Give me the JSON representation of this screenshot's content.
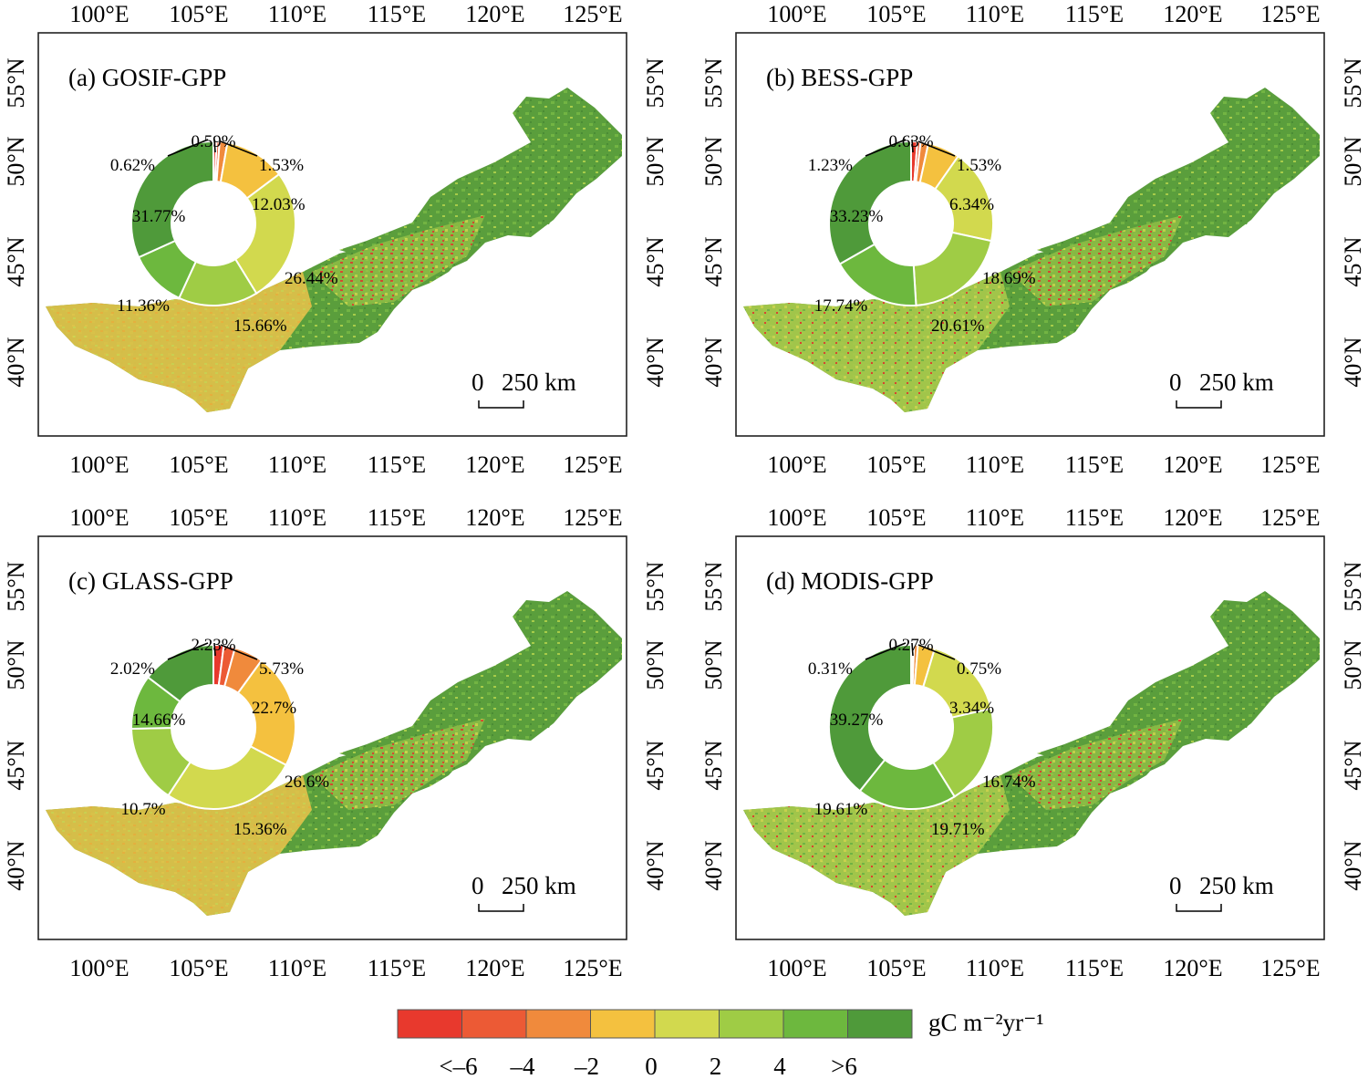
{
  "figure": {
    "x_ticks": [
      "100°E",
      "105°E",
      "110°E",
      "115°E",
      "120°E",
      "125°E"
    ],
    "y_ticks": [
      "55°N",
      "50°N",
      "45°N",
      "40°N"
    ],
    "scale_bar": {
      "zero": "0",
      "label": "250 km"
    },
    "panels": [
      {
        "title": "(a) GOSIF-GPP",
        "pie": [
          {
            "pct": 0.62,
            "label": "0.62%"
          },
          {
            "pct": 0.59,
            "label": "0.59%"
          },
          {
            "pct": 1.53,
            "label": "1.53%"
          },
          {
            "pct": 12.03,
            "label": "12.03%"
          },
          {
            "pct": 26.44,
            "label": "26.44%"
          },
          {
            "pct": 15.66,
            "label": "15.66%"
          },
          {
            "pct": 11.36,
            "label": "11.36%"
          },
          {
            "pct": 31.77,
            "label": "31.77%"
          }
        ]
      },
      {
        "title": "(b) BESS-GPP",
        "pie": [
          {
            "pct": 1.23,
            "label": "1.23%"
          },
          {
            "pct": 0.63,
            "label": "0.63%"
          },
          {
            "pct": 1.53,
            "label": "1.53%"
          },
          {
            "pct": 6.34,
            "label": "6.34%"
          },
          {
            "pct": 18.69,
            "label": "18.69%"
          },
          {
            "pct": 20.61,
            "label": "20.61%"
          },
          {
            "pct": 17.74,
            "label": "17.74%"
          },
          {
            "pct": 33.23,
            "label": "33.23%"
          }
        ]
      },
      {
        "title": "(c) GLASS-GPP",
        "pie": [
          {
            "pct": 2.02,
            "label": "2.02%"
          },
          {
            "pct": 2.23,
            "label": "2.23%"
          },
          {
            "pct": 5.73,
            "label": "5.73%"
          },
          {
            "pct": 22.7,
            "label": "22.7%"
          },
          {
            "pct": 26.6,
            "label": "26.6%"
          },
          {
            "pct": 15.36,
            "label": "15.36%"
          },
          {
            "pct": 10.7,
            "label": "10.7%"
          },
          {
            "pct": 14.66,
            "label": "14.66%"
          }
        ]
      },
      {
        "title": "(d) MODIS-GPP",
        "pie": [
          {
            "pct": 0.31,
            "label": "0.31%"
          },
          {
            "pct": 0.27,
            "label": "0.27%"
          },
          {
            "pct": 0.75,
            "label": "0.75%"
          },
          {
            "pct": 3.34,
            "label": "3.34%"
          },
          {
            "pct": 16.74,
            "label": "16.74%"
          },
          {
            "pct": 19.71,
            "label": "19.71%"
          },
          {
            "pct": 19.61,
            "label": "19.61%"
          },
          {
            "pct": 39.27,
            "label": "39.27%"
          }
        ]
      }
    ],
    "colorbar": {
      "colors": [
        "#e8392d",
        "#ec5a35",
        "#f08a3c",
        "#f4c13f",
        "#d2d94e",
        "#9fcc45",
        "#6db83e",
        "#4f9a3a"
      ],
      "labels": [
        "<–6",
        "–4",
        "–2",
        "0",
        "2",
        "4",
        ">6"
      ],
      "unit": "gC m⁻²yr⁻¹"
    }
  }
}
